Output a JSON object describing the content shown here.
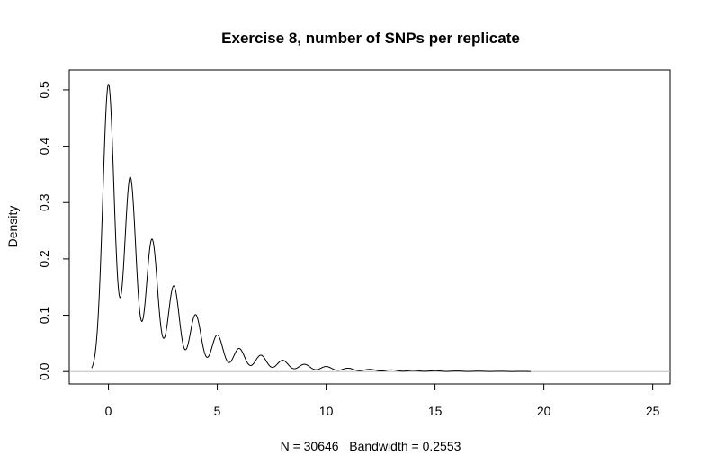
{
  "chart_data": {
    "type": "line",
    "title": "Exercise 8, number of SNPs per replicate",
    "xlabel": "N = 30646   Bandwidth = 0.2553",
    "ylabel": "Density",
    "xlim": [
      -1.8,
      25.8
    ],
    "ylim": [
      -0.022,
      0.535
    ],
    "xticks": [
      0,
      5,
      10,
      15,
      20,
      25
    ],
    "yticks": [
      0.0,
      0.1,
      0.2,
      0.3,
      0.4,
      0.5
    ],
    "xtick_labels": [
      "0",
      "5",
      "10",
      "15",
      "20",
      "25"
    ],
    "ytick_labels": [
      "0.0",
      "0.1",
      "0.2",
      "0.3",
      "0.4",
      "0.5"
    ],
    "zero_baseline": true,
    "grid": false,
    "series": [
      {
        "peaks": [
          {
            "x": 0,
            "y": 0.51
          },
          {
            "x": 1,
            "y": 0.345
          },
          {
            "x": 2,
            "y": 0.235
          },
          {
            "x": 3,
            "y": 0.152
          },
          {
            "x": 4,
            "y": 0.101
          },
          {
            "x": 5,
            "y": 0.065
          },
          {
            "x": 6,
            "y": 0.041
          },
          {
            "x": 7,
            "y": 0.029
          },
          {
            "x": 8,
            "y": 0.02
          },
          {
            "x": 9,
            "y": 0.013
          },
          {
            "x": 10,
            "y": 0.009
          },
          {
            "x": 11,
            "y": 0.006
          },
          {
            "x": 12,
            "y": 0.004
          },
          {
            "x": 13,
            "y": 0.003
          },
          {
            "x": 14,
            "y": 0.002
          },
          {
            "x": 15,
            "y": 0.0015
          },
          {
            "x": 16,
            "y": 0.001
          },
          {
            "x": 17,
            "y": 0.0008
          },
          {
            "x": 18,
            "y": 0.0006
          },
          {
            "x": 19,
            "y": 0.0004
          }
        ],
        "x_range": [
          -0.77,
          19.4
        ],
        "color": "#000000"
      }
    ],
    "baseline_color": "#bebebe"
  }
}
